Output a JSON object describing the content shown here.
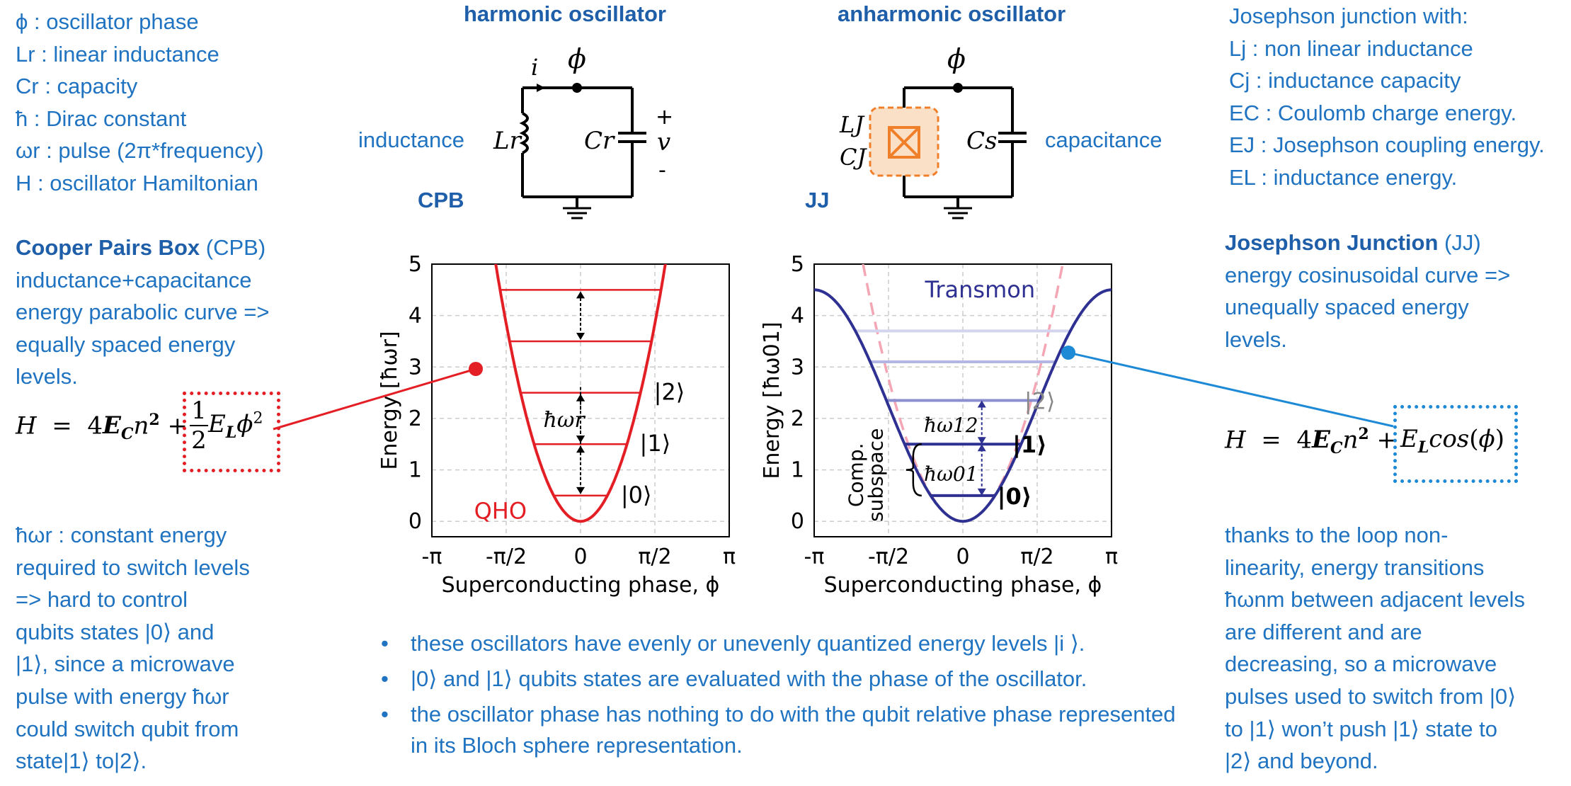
{
  "left_defs": [
    "ϕ : oscillator phase",
    "Lr : linear inductance",
    "Cr : capacity",
    "ħ : Dirac constant",
    "ωr : pulse (2π*frequency)",
    "H : oscillator Hamiltonian"
  ],
  "right_defs": [
    "Josephson junction with:",
    "Lj : non linear inductance",
    "Cj : inductance capacity",
    "EC : Coulomb charge energy.",
    "EJ : Josephson coupling energy.",
    "EL : inductance energy."
  ],
  "cpb": {
    "heading": "Cooper Pairs Box",
    "heading_abbr": "(CPB)",
    "lines": [
      "inductance+capacitance",
      "energy parabolic curve =>",
      "equally spaced energy",
      "levels."
    ],
    "formula": "H = 4E_C n^2 + ½ E_L ϕ^2",
    "note_lines": [
      "ħωr : constant energy",
      "required to switch levels",
      "=> hard to control",
      "qubits states |0⟩ and",
      "|1⟩, since a microwave",
      "pulse with energy ħωr",
      "could switch qubit from",
      "state|1⟩ to|2⟩."
    ]
  },
  "jj": {
    "heading": "Josephson Junction",
    "heading_abbr": "(JJ)",
    "lines": [
      "energy cosinusoidal curve =>",
      "unequally spaced energy",
      "levels."
    ],
    "formula": "H = 4E_C n^2 + E_L cos(ϕ)",
    "note_lines": [
      "thanks to the loop non-",
      "linearity, energy transitions",
      "ħωnm between adjacent levels",
      "are different and are",
      "decreasing, so a microwave",
      "pulses used to switch from |0⟩",
      "to |1⟩ won’t push |1⟩ state to",
      "|2⟩ and beyond."
    ]
  },
  "circuits": {
    "left_title": "harmonic oscillator",
    "right_title": "anharmonic oscillator",
    "left_side_label": "inductance",
    "right_side_label": "capacitance",
    "left_tag": "CPB",
    "right_tag": "JJ",
    "phi": "ϕ",
    "current": "i",
    "plus": "+",
    "v": "v",
    "minus": "-",
    "Lr": "Lr",
    "Cr": "Cr",
    "LJ": "LJ",
    "CJ": "CJ",
    "Cs": "Cs"
  },
  "bullets": [
    "these oscillators have evenly or unevenly quantized energy levels |i ⟩.",
    "|0⟩ and |1⟩ qubits states are evaluated with the phase of the oscillator.",
    "the oscillator phase has nothing to do with the qubit relative phase represented in its Bloch sphere representation."
  ],
  "chart_data": [
    {
      "type": "line",
      "ylabel": "Energy [ħωr]",
      "xlabel": "Superconducting phase, ϕ",
      "xticks": [
        "-π",
        "-π/2",
        "0",
        "π/2",
        "π"
      ],
      "yticks": [
        "0",
        "1",
        "2",
        "3",
        "4",
        "5"
      ],
      "xlim": [
        -3.1416,
        3.1416
      ],
      "ylim": [
        -0.3,
        5
      ],
      "series": [
        {
          "name": "QHO",
          "curve": "parabola",
          "y": "x^2 * 4.5 / 1.7^2",
          "color": "#e31e24"
        }
      ],
      "levels": [
        0.5,
        1.5,
        2.5,
        3.5,
        4.5
      ],
      "level_labels": [
        "|0⟩",
        "|1⟩",
        "|2⟩"
      ],
      "spacing_label": "ħωr",
      "curve_label": "QHO"
    },
    {
      "type": "line",
      "ylabel": "Energy [ħω01]",
      "xlabel": "Superconducting phase, ϕ",
      "xticks": [
        "-π",
        "-π/2",
        "0",
        "π/2",
        "π"
      ],
      "yticks": [
        "0",
        "1",
        "2",
        "3",
        "4",
        "5"
      ],
      "xlim": [
        -3.1416,
        3.1416
      ],
      "ylim": [
        -0.3,
        5
      ],
      "series": [
        {
          "name": "Transmon",
          "curve": "cosine",
          "y": "2.25 * (1 - cos x)",
          "color": "#2e3192"
        },
        {
          "curve": "parabola-dashed",
          "color": "#f4a6b4"
        }
      ],
      "levels": [
        0.5,
        1.5,
        2.35,
        3.1,
        3.7
      ],
      "level_labels": [
        "|0⟩",
        "|1⟩",
        "|2⟩"
      ],
      "transition_labels": [
        "ħω01",
        "ħω12"
      ],
      "subspace_label": [
        "Comp.",
        "subspace"
      ],
      "curve_label": "Transmon"
    }
  ],
  "colors": {
    "text_blue": "#1f73c1",
    "heading_blue": "#1f5ea8",
    "qho_red": "#e31e24",
    "transmon_navy": "#2e3192",
    "connector_blue": "#1e8ad6",
    "junction_orange": "#f07f2a"
  }
}
